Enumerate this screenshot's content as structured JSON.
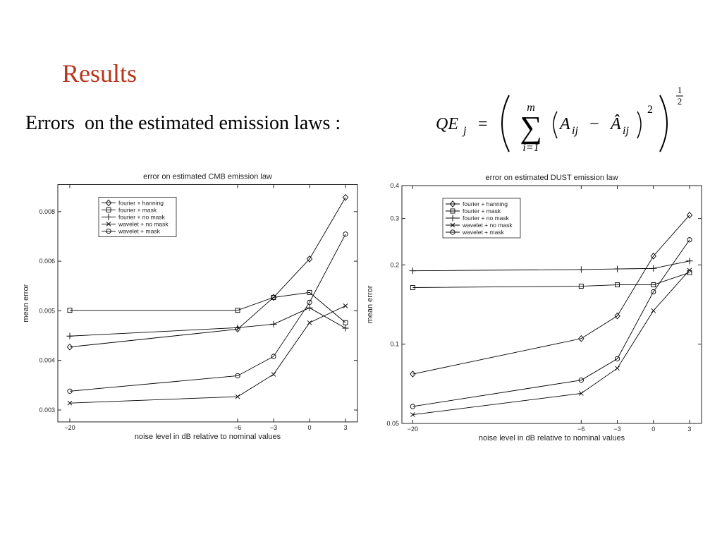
{
  "slide": {
    "title": "Results",
    "text": "Errors  on the estimated emission laws :",
    "formula": {
      "lhs": "QE",
      "lhs_sub": "j",
      "eq": "=",
      "sum": "∑",
      "sum_top": "m",
      "sum_bottom": "i=1",
      "a": "A",
      "a_sub": "ij",
      "minus": "−",
      "ahat": "Â",
      "ahat_sub": "ij",
      "square": "2",
      "exp_num": "1",
      "exp_den": "2"
    }
  },
  "chart_data": [
    {
      "type": "line",
      "title": "error on estimated CMB emission law",
      "x_label": "noise level in dB relative to nominal values",
      "y_label": "mean error",
      "x": [
        -20,
        -6,
        -3,
        0,
        3
      ],
      "xlim": [
        -21,
        4
      ],
      "xticks": [
        {
          "value": -20,
          "label": "−20"
        },
        {
          "value": -6,
          "label": "−6"
        },
        {
          "value": -3,
          "label": "−3"
        },
        0,
        3
      ],
      "ylim": [
        0.00276,
        0.00909
      ],
      "yticks": [
        0.003,
        0.004,
        0.005,
        0.006,
        0.008
      ],
      "legend": "upper left",
      "series": [
        {
          "name": "fourier + hanning",
          "color": "#000000",
          "marker": "diamond",
          "values": [
            0.00427,
            0.00463,
            0.00527,
            0.00609,
            0.00857
          ]
        },
        {
          "name": "fourier + mask",
          "color": "#000000",
          "marker": "square",
          "values": [
            0.00501,
            0.00501,
            0.00527,
            0.00537,
            0.00476
          ]
        },
        {
          "name": "fourier + no mask",
          "color": "#000000",
          "marker": "plus",
          "values": [
            0.00449,
            0.00466,
            0.00473,
            0.00506,
            0.00465
          ]
        },
        {
          "name": "wavelet + no mask",
          "color": "#000000",
          "marker": "x",
          "values": [
            0.00314,
            0.00327,
            0.00372,
            0.00476,
            0.0051
          ]
        },
        {
          "name": "wavelet + mask",
          "color": "#000000",
          "marker": "circle",
          "values": [
            0.00338,
            0.00369,
            0.00408,
            0.00517,
            0.00709
          ]
        }
      ]
    },
    {
      "type": "line",
      "title": "error on estimated DUST emission law",
      "x_label": "noise level in dB relative to nominal values",
      "y_label": "mean error",
      "x": [
        -20,
        -6,
        -3,
        0,
        3
      ],
      "xlim": [
        -20.9,
        4
      ],
      "xticks": [
        {
          "value": -20,
          "label": "−20"
        },
        {
          "value": -6,
          "label": "−6"
        },
        {
          "value": -3,
          "label": "−3"
        },
        0,
        3
      ],
      "ylim": [
        0.05,
        0.4
      ],
      "yticks": [
        0.05,
        0.1,
        0.2,
        0.3,
        0.4
      ],
      "yscale": "log",
      "legend": "upper left",
      "series": [
        {
          "name": "fourier + hanning",
          "color": "#000000",
          "marker": "diamond",
          "values": [
            0.077,
            0.105,
            0.128,
            0.216,
            0.309
          ]
        },
        {
          "name": "fourier + mask",
          "color": "#000000",
          "marker": "square",
          "values": [
            0.164,
            0.166,
            0.168,
            0.168,
            0.187
          ]
        },
        {
          "name": "fourier + no mask",
          "color": "#000000",
          "marker": "plus",
          "values": [
            0.19,
            0.192,
            0.193,
            0.194,
            0.207
          ]
        },
        {
          "name": "wavelet + no mask",
          "color": "#000000",
          "marker": "x",
          "values": [
            0.054,
            0.065,
            0.081,
            0.134,
            0.191
          ]
        },
        {
          "name": "wavelet + mask",
          "color": "#000000",
          "marker": "circle",
          "values": [
            0.058,
            0.073,
            0.088,
            0.158,
            0.249
          ]
        }
      ]
    }
  ]
}
